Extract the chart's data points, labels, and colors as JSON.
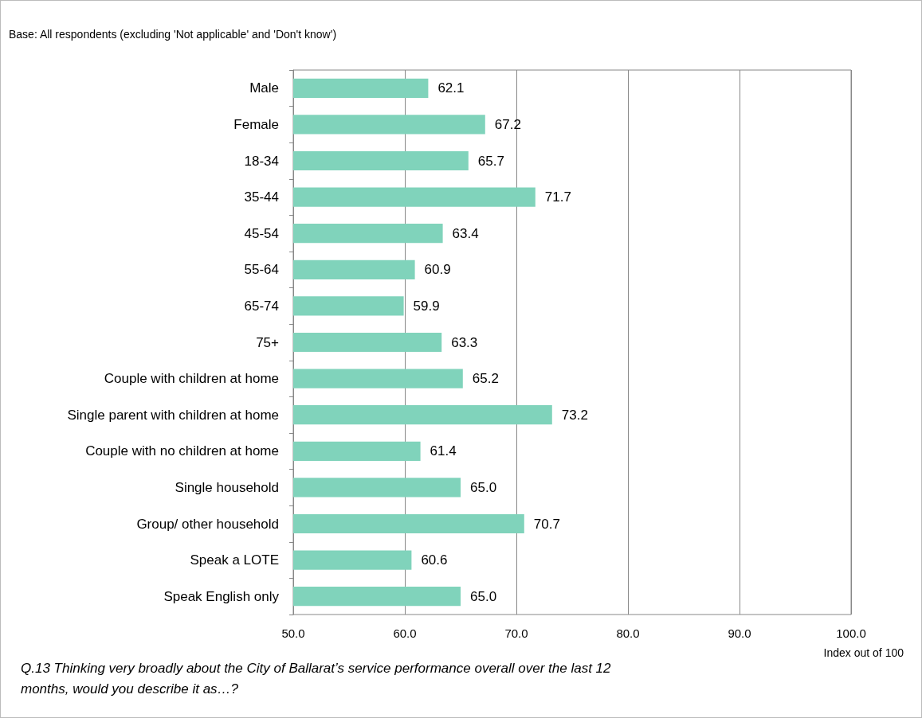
{
  "chart_data": {
    "type": "bar",
    "orientation": "horizontal",
    "categories": [
      "Male",
      "Female",
      "18-34",
      "35-44",
      "45-54",
      "55-64",
      "65-74",
      "75+",
      "Couple with children at home",
      "Single parent with children at home",
      "Couple with no children at home",
      "Single household",
      "Group/ other household",
      "Speak a LOTE",
      "Speak English only"
    ],
    "values": [
      62.1,
      67.2,
      65.7,
      71.7,
      63.4,
      60.9,
      59.9,
      63.3,
      65.2,
      73.2,
      61.4,
      65.0,
      70.7,
      60.6,
      65.0
    ],
    "value_labels": [
      "62.1",
      "67.2",
      "65.7",
      "71.7",
      "63.4",
      "60.9",
      "59.9",
      "63.3",
      "65.2",
      "73.2",
      "61.4",
      "65.0",
      "70.7",
      "60.6",
      "65.0"
    ],
    "color": "#80d3bb",
    "xlim": [
      50,
      100
    ],
    "xticks": [
      {
        "value": 50,
        "label": "50.0"
      },
      {
        "value": 60,
        "label": "60.0"
      },
      {
        "value": 70,
        "label": "70.0"
      },
      {
        "value": 80,
        "label": "80.0"
      },
      {
        "value": 90,
        "label": "90.0"
      },
      {
        "value": 100,
        "label": "100.0"
      }
    ],
    "xlabel": "Index out of 100",
    "grid": "x",
    "annotations": [
      "Base: All respondents (excluding 'Not applicable' and 'Don't know')",
      "Q.13 Thinking very broadly about the City of Ballarat’s service performance overall over the last 12 months, would you describe it as…?"
    ]
  }
}
